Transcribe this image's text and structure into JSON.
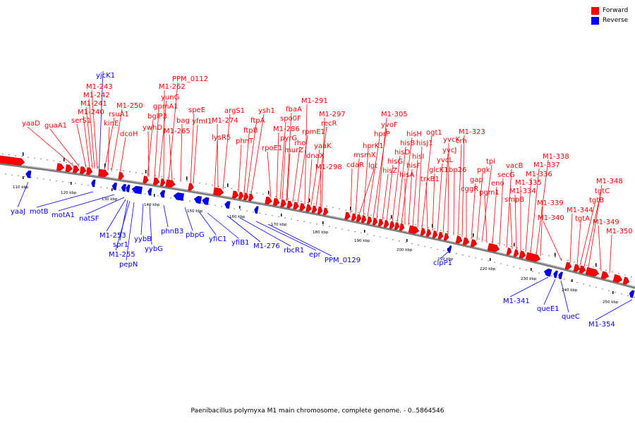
{
  "legend": {
    "forward_label": "Forward",
    "forward_color": "#ff0000",
    "reverse_label": "Reverse",
    "reverse_color": "#0000ff"
  },
  "caption": "Paenibacillus polymyxa M1 main chromosome, complete genome. - 0..5864546",
  "kbp_labels": [
    "110 kbp",
    "120 kbp",
    "130 kbp",
    "140 kbp",
    "150 kbp",
    "160 kbp",
    "170 kbp",
    "180 kbp",
    "190 kbp",
    "200 kbp",
    "210 kbp",
    "220 kbp",
    "230 kbp",
    "240 kbp",
    "250 kbp"
  ],
  "forward_labels": [
    "yaaD",
    "guaA1",
    "serS1",
    "M1-240",
    "M1-241",
    "M1-242",
    "M1-243",
    "rsuA1",
    "kinE",
    "M1-250",
    "dcoH",
    "bglP3",
    "ywhD",
    "gpmA1",
    "yunG",
    "M1-262",
    "PPM_0112",
    "M1-265",
    "bag",
    "speE",
    "yfmI1",
    "lysR5",
    "M1-274",
    "argS1",
    "phnT",
    "ftpB",
    "ftpA",
    "ysh1",
    "rpoE1",
    "M1-286",
    "spo0F",
    "pyrG",
    "murZ",
    "fbaA",
    "rho",
    "rpmE1",
    "M1-291",
    "dnaX",
    "yaaK",
    "recR",
    "M1-297",
    "M1-298",
    "cdaR",
    "msmX",
    "lgt",
    "hprK1",
    "hprP",
    "yvoF",
    "M1-305",
    "hisZ",
    "hisG",
    "hisD",
    "hisB",
    "hisH",
    "hisA",
    "hisF",
    "hisI",
    "hisJ1",
    "ogt1",
    "trxB1",
    "glcK1",
    "yvcL",
    "yvcJ",
    "yvcK",
    "bp26",
    "crh",
    "M1-323",
    "cggR",
    "gap",
    "pgk",
    "tpi",
    "pgm1",
    "eno",
    "secG",
    "vacB",
    "smpB",
    "M1-334",
    "M1-335",
    "M1-336",
    "M1-337",
    "M1-338",
    "M1-339",
    "M1-340",
    "M1-344",
    "tgtA",
    "tgtB",
    "tgtC",
    "M1-348",
    "M1-349",
    "M1-350"
  ],
  "reverse_labels": [
    "yjcK1",
    "yaaJ",
    "motB",
    "motA1",
    "natSF",
    "M1-253",
    "spr1",
    "M1-255",
    "pepN",
    "yybB",
    "yybG",
    "phnB3",
    "pbpG",
    "yfiC1",
    "yfiB1",
    "M1-276",
    "rbcR1",
    "epr",
    "PPM_0129",
    "clpP1",
    "M1-341",
    "queE1",
    "queC",
    "M1-354"
  ]
}
